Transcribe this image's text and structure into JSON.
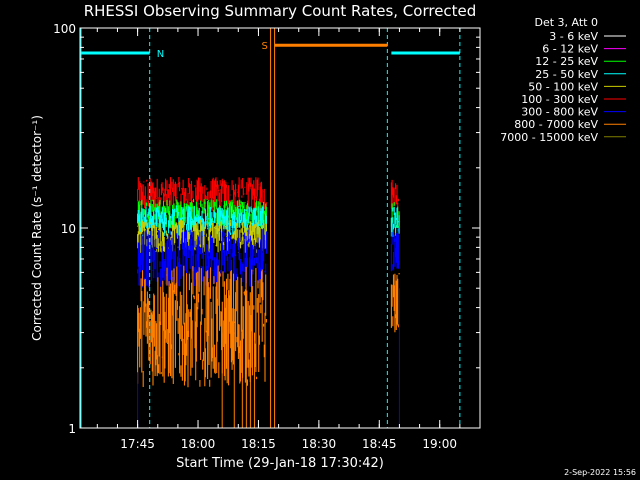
{
  "chart_data": {
    "type": "line",
    "title": "RHESSI Observing Summary Count Rates, Corrected",
    "xlabel": "Start Time (29-Jan-18 17:30:42)",
    "ylabel": "Corrected Count Rate (s⁻¹ detector⁻¹)",
    "yscale": "log",
    "ylim": [
      1,
      100
    ],
    "xlim": [
      "17:30:42",
      "19:10:00"
    ],
    "x_ticks": [
      "17:45",
      "18:00",
      "18:15",
      "18:30",
      "18:45",
      "19:00"
    ],
    "y_ticks": [
      "1",
      "10",
      "100"
    ],
    "legend_title": "Det 3, Att 0",
    "legend_position": "top-right",
    "timestamp": "2-Sep-2022 15:56",
    "series": [
      {
        "name": "3 - 6 keV",
        "color": "#ffffff"
      },
      {
        "name": "6 - 12 keV",
        "color": "#ff00ff"
      },
      {
        "name": "12 - 25 keV",
        "color": "#00ff00"
      },
      {
        "name": "25 - 50 keV",
        "color": "#00ffff"
      },
      {
        "name": "50 - 100 keV",
        "color": "#cccc00"
      },
      {
        "name": "100 - 300 keV",
        "color": "#ff0000"
      },
      {
        "name": "300 - 800 keV",
        "color": "#0000ff"
      },
      {
        "name": "800 - 7000 keV",
        "color": "#ff8000"
      },
      {
        "name": "7000 - 15000 keV",
        "color": "#808000"
      }
    ],
    "bands": [
      {
        "series": "100 - 300 keV",
        "segments": [
          {
            "start": "17:45",
            "end": "18:17",
            "low": 12,
            "high": 18
          },
          {
            "start": "18:48",
            "end": "18:50",
            "low": 12,
            "high": 18
          }
        ]
      },
      {
        "series": "12 - 25 keV",
        "segments": [
          {
            "start": "17:45",
            "end": "18:17",
            "low": 10,
            "high": 14
          },
          {
            "start": "18:48",
            "end": "18:50",
            "low": 10,
            "high": 14
          }
        ]
      },
      {
        "series": "25 - 50 keV",
        "segments": [
          {
            "start": "17:45",
            "end": "18:17",
            "low": 9,
            "high": 13
          },
          {
            "start": "18:48",
            "end": "18:50",
            "low": 9,
            "high": 13
          }
        ]
      },
      {
        "series": "50 - 100 keV",
        "segments": [
          {
            "start": "17:45",
            "end": "18:17",
            "low": 7.5,
            "high": 11
          }
        ]
      },
      {
        "series": "300 - 800 keV",
        "segments": [
          {
            "start": "17:45",
            "end": "18:17",
            "low": 5,
            "high": 10
          },
          {
            "start": "18:48",
            "end": "18:50",
            "low": 6,
            "high": 10
          }
        ]
      },
      {
        "series": "800 - 7000 keV",
        "segments": [
          {
            "start": "17:45",
            "end": "18:17",
            "low": 1.6,
            "high": 6.5
          },
          {
            "start": "18:48",
            "end": "18:50",
            "low": 3,
            "high": 6
          }
        ]
      }
    ],
    "flags": [
      {
        "label": "N",
        "color": "#00ffff",
        "value": 75,
        "segments": [
          [
            "17:30:42",
            "17:48"
          ],
          [
            "18:48",
            "19:05"
          ]
        ]
      },
      {
        "label": "S",
        "color": "#ff8000",
        "value": 82,
        "segments": [
          [
            "18:19",
            "18:47"
          ]
        ]
      }
    ],
    "vlines": [
      {
        "color": "#00ffff",
        "style": "dashed",
        "x": [
          "17:48",
          "18:47",
          "19:05"
        ]
      },
      {
        "color": "#ff8000",
        "style": "solid",
        "x": [
          "18:18",
          "18:19"
        ]
      }
    ]
  }
}
